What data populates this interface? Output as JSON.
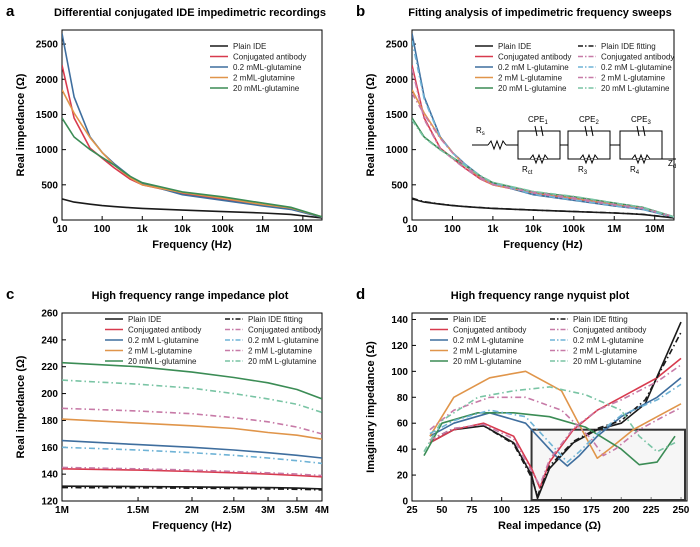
{
  "colors": {
    "black": "#1a1a1a",
    "red": "#d83a4e",
    "blue": "#3f6e9e",
    "orange": "#e0954a",
    "green": "#3b8c55",
    "pink": "#c77aa7",
    "lightblue": "#6fb3d6",
    "lightgreen": "#79c4a4",
    "box": "#333333"
  },
  "panels": [
    {
      "letter": "a",
      "title": "Differential conjugated IDE impedimetric recordings",
      "xlabel": "Frequency (Hz)",
      "ylabel": "Real impedance (Ω)"
    },
    {
      "letter": "b",
      "title": "Fitting analysis of impedimetric frequency sweeps",
      "xlabel": "Frequency (Hz)",
      "ylabel": "Real impedance (Ω)",
      "circuit_labels": [
        "R",
        "CPE",
        "CPE",
        "CPE",
        "R",
        "R",
        "R",
        "Z"
      ]
    },
    {
      "letter": "c",
      "title": "High frequency range impedance plot",
      "xlabel": "Frequency (Hz)",
      "ylabel": "Real impedance (Ω)"
    },
    {
      "letter": "d",
      "title": "High frequency range nyquist plot",
      "xlabel": "Real impedance (Ω)",
      "ylabel": "Imaginary impedance (Ω)"
    }
  ],
  "chart_data": [
    {
      "panel": "a",
      "type": "line",
      "xscale": "log",
      "xlim": [
        10,
        30000000
      ],
      "ylim": [
        0,
        2700
      ],
      "x_ticks": [
        "10",
        "100",
        "1k",
        "10k",
        "100k",
        "1M",
        "10M"
      ],
      "y_ticks": [
        "0",
        "500",
        "1000",
        "1500",
        "2000",
        "2500"
      ],
      "legend": "top-right",
      "x": [
        10,
        20,
        50,
        100,
        200,
        500,
        1000,
        10000,
        100000,
        1000000,
        5000000,
        30000000
      ],
      "series": [
        {
          "name": "Plain IDE",
          "color": "black",
          "values": [
            300,
            255,
            225,
            205,
            190,
            175,
            165,
            140,
            120,
            100,
            80,
            30
          ]
        },
        {
          "name": "Conjugated antibody",
          "color": "red",
          "values": [
            2200,
            1450,
            1020,
            880,
            740,
            580,
            500,
            380,
            290,
            210,
            160,
            40
          ]
        },
        {
          "name": "0.2 mML-glutamine",
          "color": "blue",
          "values": [
            2650,
            1750,
            1180,
            960,
            800,
            620,
            520,
            360,
            280,
            200,
            150,
            40
          ]
        },
        {
          "name": "2 mML-glutamine",
          "color": "orange",
          "values": [
            1850,
            1520,
            1170,
            960,
            780,
            600,
            500,
            390,
            310,
            220,
            170,
            45
          ]
        },
        {
          "name": "20 mML-glutamine",
          "color": "green",
          "values": [
            1450,
            1180,
            1000,
            890,
            780,
            620,
            530,
            400,
            330,
            240,
            180,
            45
          ]
        }
      ]
    },
    {
      "panel": "b",
      "type": "line",
      "xscale": "log",
      "xlim": [
        10,
        30000000
      ],
      "ylim": [
        0,
        2700
      ],
      "x_ticks": [
        "10",
        "100",
        "1k",
        "10k",
        "100k",
        "1M",
        "10M"
      ],
      "y_ticks": [
        "0",
        "500",
        "1000",
        "1500",
        "2000",
        "2500"
      ],
      "legend": "top-right",
      "x": [
        10,
        20,
        50,
        100,
        200,
        500,
        1000,
        10000,
        100000,
        1000000,
        5000000,
        30000000
      ],
      "series": [
        {
          "name": "Plain IDE",
          "color": "black",
          "style": "solid",
          "values": [
            300,
            255,
            225,
            205,
            190,
            175,
            165,
            140,
            120,
            100,
            80,
            30
          ]
        },
        {
          "name": "Conjugated antibody",
          "color": "red",
          "style": "solid",
          "values": [
            2200,
            1450,
            1020,
            880,
            740,
            580,
            500,
            380,
            290,
            210,
            160,
            40
          ]
        },
        {
          "name": "0.2 mM L-glutamine",
          "color": "blue",
          "style": "solid",
          "values": [
            2650,
            1750,
            1180,
            960,
            800,
            620,
            520,
            360,
            280,
            200,
            150,
            40
          ]
        },
        {
          "name": "2 mM L-glutamine",
          "color": "orange",
          "style": "solid",
          "values": [
            1850,
            1520,
            1170,
            960,
            780,
            600,
            500,
            390,
            310,
            220,
            170,
            45
          ]
        },
        {
          "name": "20 mM L-glutamine",
          "color": "green",
          "style": "solid",
          "values": [
            1450,
            1180,
            1000,
            890,
            780,
            620,
            530,
            400,
            330,
            240,
            180,
            45
          ]
        },
        {
          "name": "Plain IDE fitting",
          "color": "black",
          "style": "dash",
          "values": [
            310,
            260,
            228,
            207,
            192,
            176,
            166,
            141,
            121,
            101,
            81,
            31
          ]
        },
        {
          "name": "Conjugated antibody",
          "color": "pink",
          "style": "dash",
          "values": [
            2150,
            1430,
            1010,
            870,
            735,
            585,
            505,
            385,
            295,
            212,
            162,
            42
          ]
        },
        {
          "name": "0.2 mM L-glutamine",
          "color": "lightblue",
          "style": "dash",
          "values": [
            2550,
            1720,
            1170,
            955,
            795,
            625,
            525,
            365,
            285,
            203,
            152,
            42
          ]
        },
        {
          "name": "2 mM L-glutamine",
          "color": "pink",
          "style": "dash",
          "values": [
            1800,
            1500,
            1160,
            955,
            775,
            605,
            505,
            395,
            315,
            222,
            172,
            46
          ]
        },
        {
          "name": "20 mM L-glutamine",
          "color": "lightgreen",
          "style": "dash",
          "values": [
            1420,
            1170,
            995,
            885,
            775,
            625,
            535,
            405,
            335,
            242,
            182,
            46
          ]
        }
      ]
    },
    {
      "panel": "c",
      "type": "line",
      "xscale": "log",
      "xlim": [
        1000000,
        4000000
      ],
      "ylim": [
        120,
        260
      ],
      "x_ticks": [
        "1M",
        "1.5M",
        "2M",
        "2.5M",
        "3M",
        "3.5M",
        "4M"
      ],
      "y_ticks": [
        "120",
        "140",
        "160",
        "180",
        "200",
        "220",
        "240",
        "260"
      ],
      "legend": "top",
      "x": [
        1000000,
        1500000,
        2000000,
        2500000,
        3000000,
        3500000,
        4000000
      ],
      "series": [
        {
          "name": "Plain IDE",
          "color": "black",
          "style": "solid",
          "values": [
            131,
            130.8,
            130.5,
            130.2,
            130,
            129.6,
            129
          ]
        },
        {
          "name": "Conjugated antibody",
          "color": "red",
          "style": "solid",
          "values": [
            144,
            143,
            142,
            141,
            140,
            139,
            138
          ]
        },
        {
          "name": "0.2 mM L-glutamine",
          "color": "blue",
          "style": "solid",
          "values": [
            165,
            162,
            160,
            158,
            156,
            154,
            152
          ]
        },
        {
          "name": "2 mM L-glutamine",
          "color": "orange",
          "style": "solid",
          "values": [
            181,
            178,
            176,
            174,
            171,
            169,
            166
          ]
        },
        {
          "name": "20 mM L-glutamine",
          "color": "green",
          "style": "solid",
          "values": [
            223,
            220,
            216,
            212,
            208,
            203,
            196
          ]
        },
        {
          "name": "Plain IDE fitting",
          "color": "black",
          "style": "dash",
          "values": [
            130,
            129.8,
            129.5,
            129.2,
            129,
            128.7,
            128.3
          ]
        },
        {
          "name": "Conjugated antibody",
          "color": "pink",
          "style": "dash",
          "values": [
            145,
            144,
            143,
            142,
            141,
            140,
            139
          ]
        },
        {
          "name": "0.2 mM L-glutamine",
          "color": "lightblue",
          "style": "dash",
          "values": [
            160,
            158,
            156,
            154,
            152,
            150,
            148
          ]
        },
        {
          "name": "2 mM L-glutamine",
          "color": "pink",
          "style": "dash",
          "values": [
            189,
            187,
            185,
            182,
            179,
            175,
            170
          ]
        },
        {
          "name": "20 mM L-glutamine",
          "color": "lightgreen",
          "style": "dash",
          "values": [
            210,
            207,
            204,
            200,
            196,
            192,
            186
          ]
        }
      ]
    },
    {
      "panel": "d",
      "type": "line",
      "xlim": [
        25,
        255
      ],
      "ylim": [
        0,
        145
      ],
      "x_ticks": [
        "25",
        "50",
        "75",
        "100",
        "125",
        "150",
        "175",
        "200",
        "225",
        "250"
      ],
      "y_ticks": [
        "0",
        "20",
        "40",
        "60",
        "80",
        "100",
        "120",
        "140"
      ],
      "legend": "top-left",
      "highlight_box": {
        "x": [
          125,
          255
        ],
        "y": [
          0,
          55
        ]
      },
      "series": [
        {
          "name": "Plain IDE",
          "color": "black",
          "style": "solid",
          "x": [
            40,
            60,
            85,
            110,
            125,
            130,
            140,
            160,
            180,
            200,
            220,
            250
          ],
          "y": [
            45,
            55,
            58,
            45,
            20,
            2,
            25,
            45,
            55,
            60,
            75,
            138
          ]
        },
        {
          "name": "Conjugated antibody",
          "color": "red",
          "style": "solid",
          "x": [
            40,
            60,
            85,
            110,
            125,
            132,
            140,
            160,
            180,
            200,
            230,
            250
          ],
          "y": [
            45,
            55,
            60,
            50,
            25,
            10,
            30,
            55,
            70,
            80,
            95,
            110
          ]
        },
        {
          "name": "0.2 mM L-glutamine",
          "color": "blue",
          "style": "solid",
          "x": [
            40,
            60,
            90,
            120,
            145,
            155,
            165,
            180,
            200,
            230,
            250
          ],
          "y": [
            50,
            60,
            68,
            60,
            35,
            27,
            35,
            50,
            65,
            80,
            95
          ]
        },
        {
          "name": "2 mM L-glutamine",
          "color": "orange",
          "style": "solid",
          "x": [
            40,
            60,
            90,
            120,
            150,
            170,
            180,
            190,
            210,
            230,
            250
          ],
          "y": [
            50,
            80,
            95,
            100,
            85,
            50,
            33,
            40,
            55,
            65,
            75
          ]
        },
        {
          "name": "20 mM L-glutamine",
          "color": "green",
          "style": "solid",
          "x": [
            35,
            50,
            80,
            110,
            140,
            170,
            200,
            215,
            230,
            245
          ],
          "y": [
            35,
            60,
            68,
            68,
            65,
            57,
            40,
            28,
            30,
            50
          ]
        },
        {
          "name": "Plain IDE fitting",
          "color": "black",
          "style": "dash",
          "x": [
            40,
            60,
            85,
            110,
            125,
            130,
            140,
            160,
            180,
            200,
            220,
            250
          ],
          "y": [
            47,
            56,
            58,
            44,
            18,
            4,
            27,
            46,
            56,
            62,
            78,
            130
          ]
        },
        {
          "name": "Conjugated antibody",
          "color": "pink",
          "style": "dash",
          "x": [
            40,
            60,
            85,
            110,
            125,
            132,
            140,
            160,
            180,
            200,
            230,
            250
          ],
          "y": [
            47,
            56,
            59,
            48,
            23,
            12,
            32,
            56,
            70,
            78,
            92,
            105
          ]
        },
        {
          "name": "0.2 mM L-glutamine",
          "color": "lightblue",
          "style": "dash",
          "x": [
            40,
            60,
            90,
            120,
            145,
            155,
            165,
            180,
            200,
            230,
            250
          ],
          "y": [
            52,
            62,
            70,
            65,
            40,
            30,
            38,
            52,
            66,
            78,
            90
          ]
        },
        {
          "name": "2 mM L-glutamine",
          "color": "pink",
          "style": "dash",
          "x": [
            40,
            60,
            90,
            120,
            150,
            175,
            185,
            195,
            215,
            235,
            250
          ],
          "y": [
            55,
            70,
            80,
            80,
            70,
            48,
            35,
            40,
            55,
            65,
            72
          ]
        },
        {
          "name": "20 mM L-glutamine",
          "color": "lightgreen",
          "style": "dash",
          "x": [
            35,
            50,
            80,
            110,
            140,
            170,
            200,
            215,
            230,
            245
          ],
          "y": [
            38,
            62,
            80,
            85,
            88,
            82,
            70,
            50,
            38,
            45
          ]
        }
      ]
    }
  ]
}
